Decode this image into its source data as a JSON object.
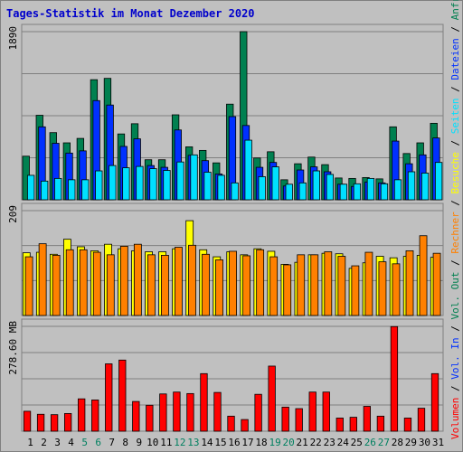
{
  "chart_data": {
    "type": "bar",
    "title": "Tages-Statistik im Monat Dezember 2020",
    "categories": [
      "1",
      "2",
      "3",
      "4",
      "5",
      "6",
      "7",
      "8",
      "9",
      "10",
      "11",
      "12",
      "13",
      "14",
      "15",
      "16",
      "17",
      "18",
      "19",
      "20",
      "21",
      "22",
      "23",
      "24",
      "25",
      "26",
      "27",
      "28",
      "29",
      "30",
      "31"
    ],
    "weekend_days": [
      "5",
      "6",
      "12",
      "13",
      "19",
      "20",
      "26",
      "27"
    ],
    "colors": {
      "anfragen": "#008050",
      "dateien": "#0030ff",
      "seiten": "#00e0ff",
      "besuche": "#ffff00",
      "rechner": "#ff8000",
      "volumen": "#ff0000",
      "weekday_label": "#000000",
      "weekend_label": "#008060"
    },
    "panels": [
      {
        "name": "top",
        "ytick_label": "1890",
        "ymax": 1890,
        "series": [
          {
            "key": "anfragen",
            "values": [
              490,
              950,
              755,
              640,
              690,
              1350,
              1365,
              740,
              855,
              450,
              450,
              955,
              595,
              555,
              415,
              1075,
              1890,
              470,
              540,
              225,
              405,
              480,
              395,
              245,
              240,
              250,
              235,
              820,
              520,
              640,
              860
            ]
          },
          {
            "key": "dateien",
            "values": [
              0,
              820,
              635,
              525,
              550,
              1115,
              1065,
              600,
              685,
              385,
              365,
              785,
              500,
              440,
              290,
              935,
              835,
              365,
              420,
              155,
              335,
              370,
              315,
              175,
              150,
              200,
              190,
              660,
              405,
              505,
              695
            ]
          },
          {
            "key": "seiten",
            "values": [
              275,
              210,
              240,
              225,
              225,
              325,
              385,
              360,
              375,
              350,
              330,
              425,
              505,
              310,
              275,
              190,
              670,
              260,
              370,
              175,
              190,
              325,
              285,
              175,
              180,
              240,
              180,
              225,
              315,
              300,
              420
            ]
          }
        ]
      },
      {
        "name": "middle",
        "ytick_label": "209",
        "ymax": 209,
        "series": [
          {
            "key": "besuche",
            "values": [
              125,
              126,
              122,
              152,
              137,
              129,
              142,
              133,
              129,
              127,
              127,
              133,
              189,
              131,
              117,
              127,
              121,
              133,
              128,
              102,
              106,
              121,
              124,
              123,
              94,
              105,
              118,
              115,
              118,
              120,
              116
            ]
          },
          {
            "key": "rechner",
            "values": [
              117,
              143,
              120,
              131,
              131,
              126,
              121,
              138,
              142,
              121,
              120,
              136,
              140,
              122,
              111,
              128,
              119,
              131,
              117,
              101,
              121,
              121,
              127,
              118,
              99,
              126,
              107,
              103,
              129,
              159,
              124
            ]
          }
        ]
      },
      {
        "name": "bottom",
        "ytick_label": "278.60 MB",
        "ymax": 278.6,
        "series": [
          {
            "key": "volumen",
            "values": [
              53,
              45,
              44,
              47,
              86,
              83,
              179,
              189,
              79,
              69,
              99,
              104,
              100,
              153,
              103,
              40,
              31,
              98,
              173,
              64,
              60,
              104,
              104,
              35,
              37,
              66,
              40,
              278,
              35,
              61,
              153
            ]
          }
        ]
      }
    ],
    "legend": [
      {
        "key": "volumen",
        "label": "Volumen"
      },
      {
        "key": "sep",
        "label": " / "
      },
      {
        "key": "dateien",
        "label": "Vol. In"
      },
      {
        "key": "sep",
        "label": " / "
      },
      {
        "key": "anfragen",
        "label": "Vol. Out"
      },
      {
        "key": "sep",
        "label": " / "
      },
      {
        "key": "rechner",
        "label": "Rechner"
      },
      {
        "key": "sep",
        "label": " / "
      },
      {
        "key": "besuche",
        "label": "Besuche"
      },
      {
        "key": "sep",
        "label": " / "
      },
      {
        "key": "seiten",
        "label": "Seiten"
      },
      {
        "key": "sep",
        "label": " / "
      },
      {
        "key": "dateien",
        "label": "Dateien"
      },
      {
        "key": "sep",
        "label": " / "
      },
      {
        "key": "anfragen",
        "label": "Anfragen"
      }
    ]
  }
}
